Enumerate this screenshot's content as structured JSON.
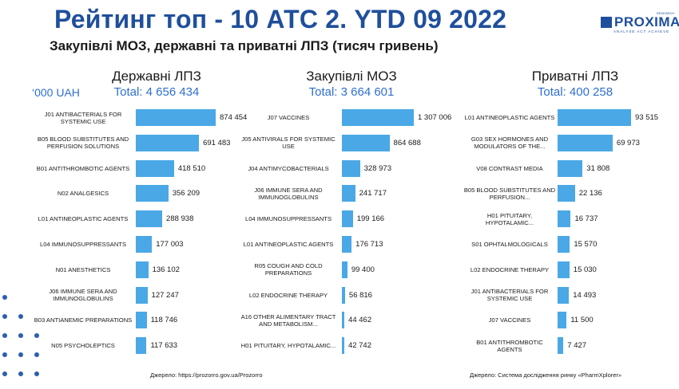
{
  "header": {
    "title": "Рейтинг топ - 10 АТС 2. YTD 09 2022",
    "subtitle": "Закупівлі МОЗ, державні та приватні ЛПЗ (тисяч гривень)",
    "unit_label": "‘000 UAH"
  },
  "logo": {
    "word": "PROXIMA",
    "tagline": "ANALYSE ACT ACHIEVE",
    "superscript": "RESEARCH"
  },
  "colors": {
    "title": "#1f4f9c",
    "bar": "#4aa8e6",
    "total": "#2f6fd1",
    "dots": "#2a5fb0"
  },
  "sources": {
    "left": "Джерело: https://prozorro.gov.ua/Prozorro",
    "right": "Джерело: Система дослідження ринку «PharmXplorer»"
  },
  "chart_data": [
    {
      "type": "bar",
      "orientation": "horizontal",
      "title": "Державні ЛПЗ",
      "total": "Total: 4 656 434",
      "categories": [
        "J01 ANTIBACTERIALS FOR SYSTEMIC USE",
        "B05 BLOOD SUBSTITUTES AND PERFUSION SOLUTIONS",
        "B01 ANTITHROMBOTIC AGENTS",
        "N02 ANALGESICS",
        "L01 ANTINEOPLASTIC AGENTS",
        "L04 IMMUNOSUPPRESSANTS",
        "N01 ANESTHETICS",
        "J06 IMMUNE SERA AND IMMUNOGLOBULINS",
        "B03 ANTIANEMIC PREPARATIONS",
        "N05 PSYCHOLEPTICS"
      ],
      "values": [
        874454,
        691483,
        418510,
        356209,
        288938,
        177003,
        136102,
        127247,
        118746,
        117633
      ],
      "labels": [
        "874 454",
        "691 483",
        "418 510",
        "356 209",
        "288 938",
        "177 003",
        "136 102",
        "127 247",
        "118 746",
        "117 633"
      ]
    },
    {
      "type": "bar",
      "orientation": "horizontal",
      "title": "Закупівлі МОЗ",
      "total": "Total: 3 664 601",
      "categories": [
        "J07 VACCINES",
        "J05 ANTIVIRALS FOR SYSTEMIC USE",
        "J04 ANTIMYCOBACTERIALS",
        "J06 IMMUNE SERA AND IMMUNOGLOBULINS",
        "L04 IMMUNOSUPPRESSANTS",
        "L01 ANTINEOPLASTIC AGENTS",
        "R05 COUGH AND COLD PREPARATIONS",
        "L02 ENDOCRINE THERAPY",
        "A16 OTHER ALIMENTARY TRACT AND METABOLISM...",
        "H01 PITUITARY, HYPOTALAMIC..."
      ],
      "values": [
        1307006,
        864688,
        328973,
        241717,
        199166,
        176713,
        99400,
        56816,
        44462,
        42742
      ],
      "labels": [
        "1 307 006",
        "864 688",
        "328 973",
        "241 717",
        "199 166",
        "176 713",
        "99 400",
        "56 816",
        "44 462",
        "42 742"
      ]
    },
    {
      "type": "bar",
      "orientation": "horizontal",
      "title": "Приватні ЛПЗ",
      "total": "Total: 400 258",
      "categories": [
        "L01 ANTINEOPLASTIC AGENTS",
        "G03 SEX HORMONES AND MODULATORS OF THE...",
        "V08 CONTRAST MEDIA",
        "B05 BLOOD SUBSTITUTES AND PERFUSION...",
        "H01 PITUITARY, HYPOTALAMIC...",
        "S01 OPHTALMOLOGICALS",
        "L02 ENDOCRINE THERAPY",
        "J01 ANTIBACTERIALS FOR SYSTEMIC USE",
        "J07 VACCINES",
        "B01 ANTITHROMBOTIC AGENTS"
      ],
      "values": [
        93515,
        69973,
        31808,
        22136,
        16737,
        15570,
        15030,
        14493,
        11500,
        7427
      ],
      "labels": [
        "93 515",
        "69 973",
        "31 808",
        "22 136",
        "16 737",
        "15 570",
        "15 030",
        "14 493",
        "11 500",
        "7 427"
      ]
    }
  ]
}
